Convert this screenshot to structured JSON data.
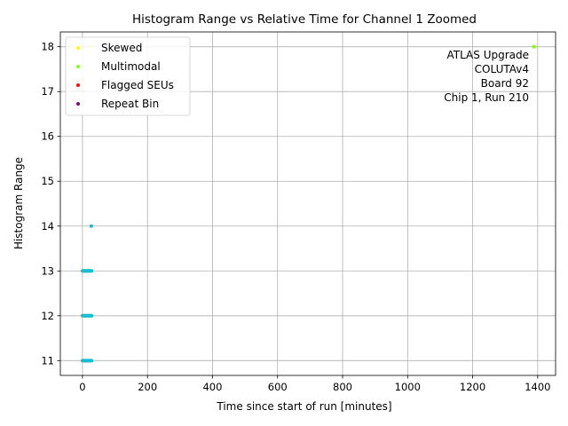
{
  "chart_data": {
    "type": "scatter",
    "title": "Histogram Range vs Relative Time for Channel 1 Zoomed",
    "xlabel": "Time since start of run [minutes]",
    "ylabel": "Histogram Range",
    "xlim": [
      -68,
      1455
    ],
    "ylim": [
      10.67,
      18.33
    ],
    "xticks": [
      0,
      200,
      400,
      600,
      800,
      1000,
      1200,
      1400
    ],
    "yticks": [
      11,
      12,
      13,
      14,
      15,
      16,
      17,
      18
    ],
    "grid": true,
    "legend_position": "top-left",
    "legend": [
      {
        "name": "Skewed",
        "color": "#ffff00"
      },
      {
        "name": "Multimodal",
        "color": "#7fff00"
      },
      {
        "name": "Flagged SEUs",
        "color": "#ff0000"
      },
      {
        "name": "Repeat Bin",
        "color": "#800080"
      }
    ],
    "annotation": [
      "ATLAS Upgrade",
      "COLUTAv4",
      "Board 92",
      "Chip 1, Run 210"
    ],
    "series": [
      {
        "color": "#17becf",
        "points": [
          {
            "x": 0,
            "y": 11
          },
          {
            "x": 2,
            "y": 11
          },
          {
            "x": 4,
            "y": 11
          },
          {
            "x": 6,
            "y": 11
          },
          {
            "x": 8,
            "y": 11
          },
          {
            "x": 10,
            "y": 11
          },
          {
            "x": 12,
            "y": 11
          },
          {
            "x": 14,
            "y": 11
          },
          {
            "x": 16,
            "y": 11
          },
          {
            "x": 18,
            "y": 11
          },
          {
            "x": 20,
            "y": 11
          },
          {
            "x": 22,
            "y": 11
          },
          {
            "x": 24,
            "y": 11
          },
          {
            "x": 26,
            "y": 11
          },
          {
            "x": 28,
            "y": 11
          },
          {
            "x": 0,
            "y": 12
          },
          {
            "x": 2,
            "y": 12
          },
          {
            "x": 4,
            "y": 12
          },
          {
            "x": 6,
            "y": 12
          },
          {
            "x": 8,
            "y": 12
          },
          {
            "x": 10,
            "y": 12
          },
          {
            "x": 12,
            "y": 12
          },
          {
            "x": 14,
            "y": 12
          },
          {
            "x": 16,
            "y": 12
          },
          {
            "x": 18,
            "y": 12
          },
          {
            "x": 20,
            "y": 12
          },
          {
            "x": 22,
            "y": 12
          },
          {
            "x": 24,
            "y": 12
          },
          {
            "x": 26,
            "y": 12
          },
          {
            "x": 28,
            "y": 12
          },
          {
            "x": 0,
            "y": 13
          },
          {
            "x": 2,
            "y": 13
          },
          {
            "x": 4,
            "y": 13
          },
          {
            "x": 6,
            "y": 13
          },
          {
            "x": 8,
            "y": 13
          },
          {
            "x": 10,
            "y": 13
          },
          {
            "x": 12,
            "y": 13
          },
          {
            "x": 14,
            "y": 13
          },
          {
            "x": 16,
            "y": 13
          },
          {
            "x": 18,
            "y": 13
          },
          {
            "x": 20,
            "y": 13
          },
          {
            "x": 22,
            "y": 13
          },
          {
            "x": 24,
            "y": 13
          },
          {
            "x": 26,
            "y": 13
          },
          {
            "x": 28,
            "y": 13
          },
          {
            "x": 27,
            "y": 14
          }
        ]
      },
      {
        "color": "#ffff00",
        "points": [
          {
            "x": 25,
            "y": 18
          }
        ]
      },
      {
        "color": "#7fff00",
        "points": [
          {
            "x": 1388,
            "y": 18
          }
        ]
      }
    ]
  }
}
